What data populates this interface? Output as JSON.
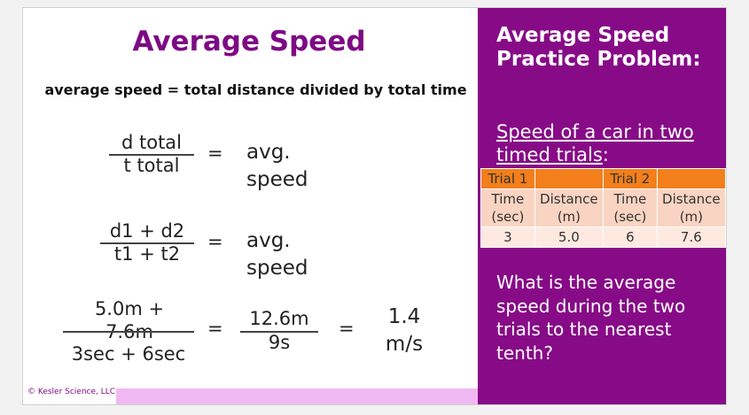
{
  "slide": {
    "title": "Average Speed",
    "definition": "average speed = total distance divided by total time",
    "equations": [
      {
        "numerator": "d  total",
        "denominator": "t  total",
        "equals": "=",
        "result": "avg. speed"
      },
      {
        "numerator": "d1 + d2",
        "denominator": "t1 + t2",
        "equals": "=",
        "result": "avg. speed"
      },
      {
        "numerator": "5.0m + 7.6m",
        "denominator": "3sec + 6sec",
        "equals": "=",
        "middle_numerator": "12.6m",
        "middle_denominator": "9s",
        "equals_2": "=",
        "result": "1.4 m/s"
      }
    ],
    "footer": "© Kesler Science, LLC"
  },
  "panel": {
    "title": "Average Speed Practice Problem:",
    "subtitle": "Speed of a car in two timed trials",
    "subtitle_suffix": ":",
    "table": {
      "header": [
        "Trial 1",
        "Trial 2"
      ],
      "rows": [
        [
          "Time (sec)",
          "Distance (m)",
          "Time (sec)",
          "Distance (m)"
        ],
        [
          "3",
          "5.0",
          "6",
          "7.6"
        ]
      ]
    },
    "question": "What is the average speed during the two trials to the nearest tenth?"
  }
}
